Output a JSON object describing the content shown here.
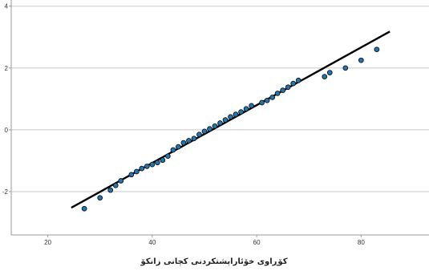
{
  "chart_data": {
    "type": "scatter",
    "title": "",
    "xlabel": "کۆڕاوی خۆئاراپشتکردنی کچانی زانکۆ",
    "ylabel": "",
    "xlim": [
      13,
      93
    ],
    "ylim": [
      -3.4,
      4.2
    ],
    "x_ticks": [
      "20",
      "40",
      "60",
      "80"
    ],
    "y_ticks": [
      "4",
      "2",
      "0",
      "-2"
    ],
    "grid": "horizontal",
    "colors": {
      "points": "#1f77b4",
      "point_edge": "#111111",
      "line": "#000000",
      "grid": "#c8c8c8",
      "axis": "#999999"
    },
    "series": [
      {
        "values": [
          {
            "x": 27,
            "y": -2.55
          },
          {
            "x": 30,
            "y": -2.2
          },
          {
            "x": 32,
            "y": -1.95
          },
          {
            "x": 33,
            "y": -1.8
          },
          {
            "x": 34,
            "y": -1.65
          },
          {
            "x": 36,
            "y": -1.45
          },
          {
            "x": 37,
            "y": -1.35
          },
          {
            "x": 38,
            "y": -1.25
          },
          {
            "x": 39,
            "y": -1.18
          },
          {
            "x": 40,
            "y": -1.12
          },
          {
            "x": 41,
            "y": -1.06
          },
          {
            "x": 42,
            "y": -0.98
          },
          {
            "x": 43,
            "y": -0.85
          },
          {
            "x": 44,
            "y": -0.65
          },
          {
            "x": 45,
            "y": -0.55
          },
          {
            "x": 46,
            "y": -0.42
          },
          {
            "x": 47,
            "y": -0.35
          },
          {
            "x": 48,
            "y": -0.28
          },
          {
            "x": 49,
            "y": -0.15
          },
          {
            "x": 50,
            "y": -0.05
          },
          {
            "x": 51,
            "y": 0.03
          },
          {
            "x": 52,
            "y": 0.12
          },
          {
            "x": 53,
            "y": 0.22
          },
          {
            "x": 54,
            "y": 0.32
          },
          {
            "x": 55,
            "y": 0.42
          },
          {
            "x": 56,
            "y": 0.5
          },
          {
            "x": 57,
            "y": 0.58
          },
          {
            "x": 58,
            "y": 0.68
          },
          {
            "x": 59,
            "y": 0.78
          },
          {
            "x": 61,
            "y": 0.88
          },
          {
            "x": 62,
            "y": 0.95
          },
          {
            "x": 63,
            "y": 1.05
          },
          {
            "x": 64,
            "y": 1.18
          },
          {
            "x": 65,
            "y": 1.28
          },
          {
            "x": 66,
            "y": 1.38
          },
          {
            "x": 67,
            "y": 1.5
          },
          {
            "x": 68,
            "y": 1.6
          },
          {
            "x": 73,
            "y": 1.72
          },
          {
            "x": 74,
            "y": 1.85
          },
          {
            "x": 77,
            "y": 2.0
          },
          {
            "x": 80,
            "y": 2.25
          },
          {
            "x": 83,
            "y": 2.6
          }
        ]
      }
    ],
    "reference_line": {
      "x": [
        24.5,
        85.5
      ],
      "y": [
        -2.52,
        3.18
      ]
    }
  }
}
